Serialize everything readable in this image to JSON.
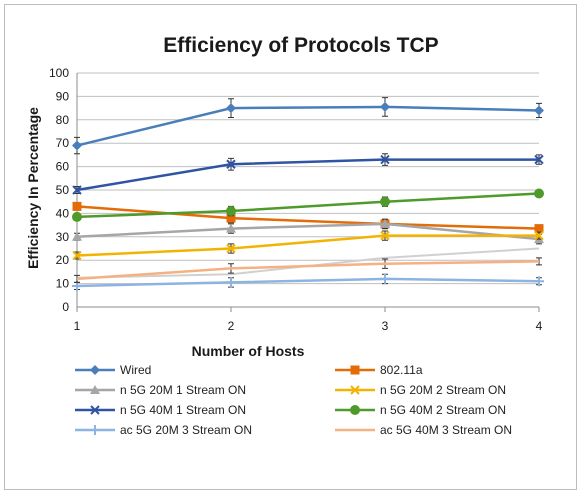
{
  "chart_data": {
    "type": "line",
    "title": "Efficiency of Protocols TCP",
    "xlabel": "Number of Hosts",
    "ylabel": "Efficiency In Percentage",
    "x": [
      1,
      2,
      3,
      4
    ],
    "xlim": [
      1,
      4
    ],
    "ylim": [
      0,
      100
    ],
    "y_ticks": [
      0,
      10,
      20,
      30,
      40,
      50,
      60,
      70,
      80,
      90,
      100
    ],
    "grid": true,
    "legend_position": "bottom",
    "series": [
      {
        "name": "Wired",
        "color": "#4a7ebb",
        "marker": "diamond",
        "values": [
          69,
          85,
          85.5,
          84
        ],
        "errors": [
          3.5,
          4,
          4,
          3
        ]
      },
      {
        "name": "802.11a",
        "color": "#e36c09",
        "marker": "square",
        "values": [
          43,
          38,
          35.5,
          33.5
        ],
        "errors": [
          1.5,
          2,
          2,
          1.5
        ]
      },
      {
        "name": "n 5G 20M 1 Stream ON",
        "color": "#a6a6a6",
        "marker": "triangle",
        "values": [
          30,
          33.5,
          35.5,
          29
        ],
        "errors": [
          1.5,
          2,
          2,
          2
        ]
      },
      {
        "name": "n 5G 20M 2 Stream ON",
        "color": "#f2b301",
        "marker": "x",
        "values": [
          22,
          25,
          30.5,
          30.5
        ],
        "errors": [
          1.5,
          2,
          2,
          1.5
        ]
      },
      {
        "name": "n 5G 40M 1 Stream ON",
        "color": "#2f54a3",
        "marker": "x",
        "values": [
          50,
          61,
          63,
          63
        ],
        "errors": [
          1.5,
          2.5,
          2.5,
          2
        ]
      },
      {
        "name": "n 5G 40M 2 Stream ON",
        "color": "#4e9a2a",
        "marker": "circle",
        "values": [
          38.5,
          41,
          45,
          48.5
        ],
        "errors": [
          1.5,
          2,
          2,
          1.5
        ]
      },
      {
        "name": "ac 5G 20M 3 Stream ON",
        "color": "#8db3e2",
        "marker": "plus",
        "values": [
          9,
          10.5,
          12,
          11
        ],
        "errors": [
          1.5,
          2,
          2,
          1.5
        ]
      },
      {
        "name": "ac 5G 40M 3 Stream ON",
        "color": "#f4b183",
        "marker": "none",
        "values": [
          12,
          16.5,
          18.5,
          19.5
        ],
        "errors": [
          1.5,
          2,
          2,
          1.5
        ]
      }
    ],
    "extra_lines": [
      {
        "color": "#d0d0d0",
        "values": [
          12.5,
          14,
          21,
          25
        ]
      }
    ]
  }
}
